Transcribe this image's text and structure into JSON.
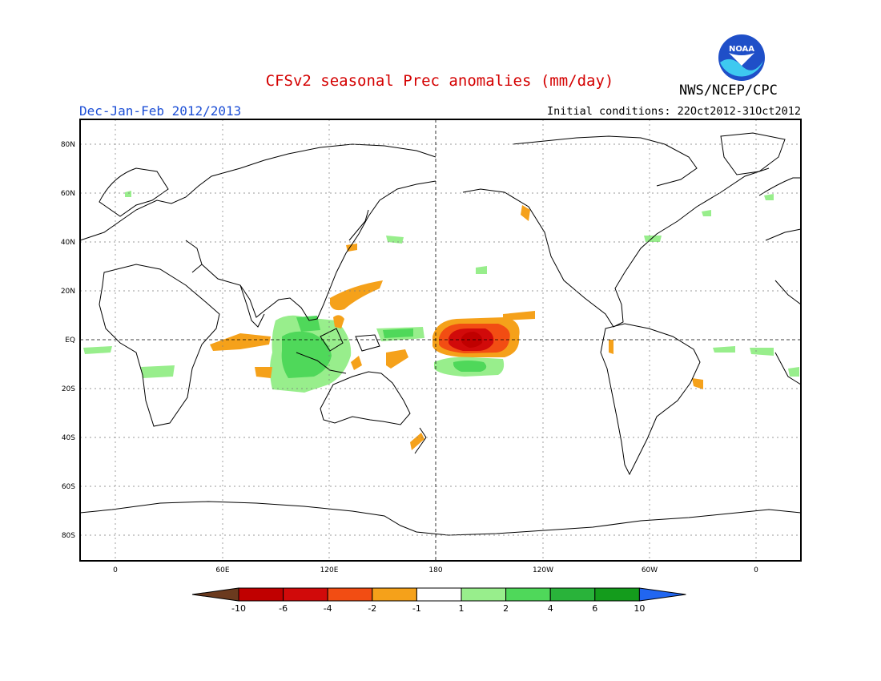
{
  "header": {
    "title": "CFSv2 seasonal Prec anomalies (mm/day)",
    "season": "Dec-Jan-Feb 2012/2013",
    "initial_conditions": "Initial conditions: 22Oct2012-31Oct2012",
    "organization": "NWS/NCEP/CPC",
    "logo_text": "NOAA"
  },
  "map": {
    "lat_labels": [
      "80N",
      "60N",
      "40N",
      "20N",
      "EQ",
      "20S",
      "40S",
      "60S",
      "80S"
    ],
    "lon_labels": [
      "0",
      "60E",
      "120E",
      "180",
      "120W",
      "60W",
      "0"
    ]
  },
  "colorbar": {
    "labels": [
      "-10",
      "-6",
      "-4",
      "-2",
      "-1",
      "1",
      "2",
      "4",
      "6",
      "10"
    ],
    "colors": [
      "#6b3a1e",
      "#c00000",
      "#d10a0a",
      "#f24d13",
      "#f5a11a",
      "#ffffff",
      "#98ee8c",
      "#4fd85a",
      "#29b33a",
      "#149c1c",
      "#2166f0"
    ]
  }
}
